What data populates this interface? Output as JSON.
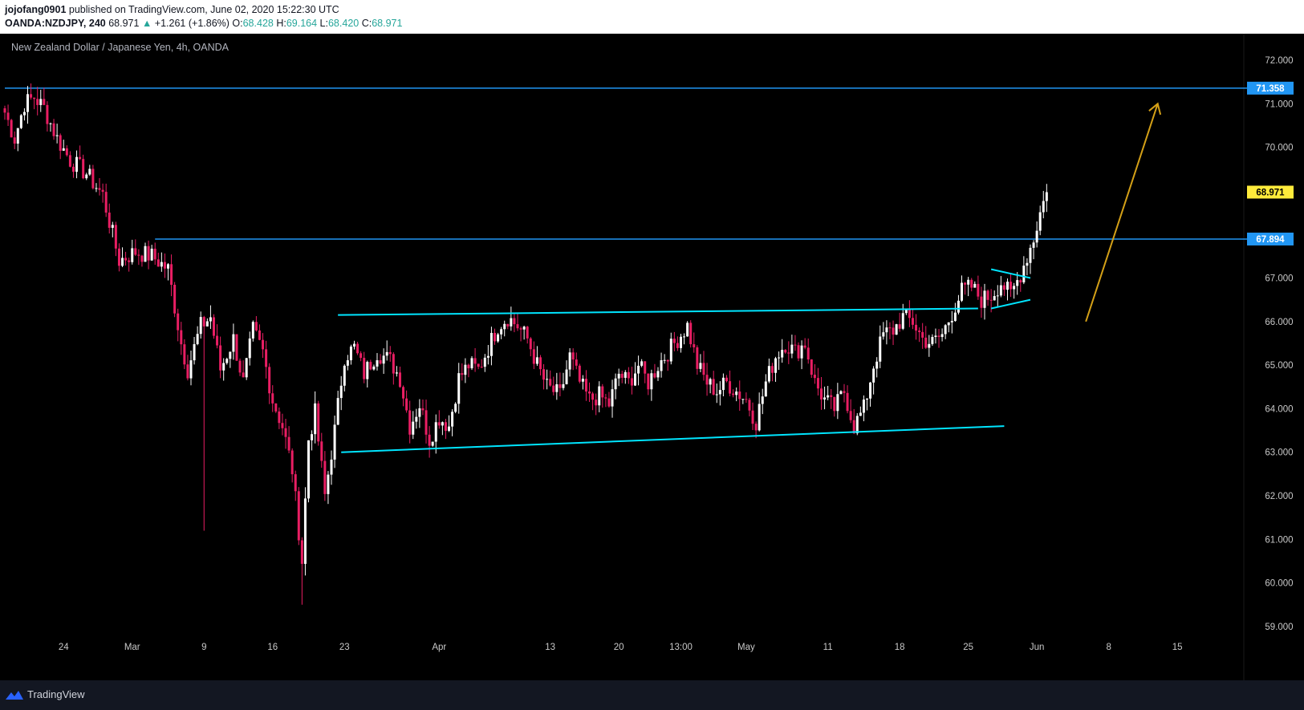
{
  "header": {
    "author": "jojofang0901",
    "published_text": "published on TradingView.com, June 02, 2020 15:22:30 UTC",
    "symbol": "OANDA:NZDJPY, 240",
    "last": "68.971",
    "change": "+1.261 (+1.86%)",
    "o_label": "O:",
    "o_val": "68.428",
    "h_label": "H:",
    "h_val": "69.164",
    "l_label": "L:",
    "l_val": "68.420",
    "c_label": "C:",
    "c_val": "68.971"
  },
  "footer": {
    "brand": "TradingView"
  },
  "colors": {
    "bull": "#ffffff",
    "bear": "#e91e63",
    "hline": "#2196f3",
    "channel": "#00e5ff",
    "arrow": "#d4a017",
    "last_badge": "#ffeb3b",
    "axis_text": "#c8c8c8"
  },
  "chart_data": {
    "type": "candlestick",
    "title": "New Zealand Dollar / Japanese Yen, 4h, OANDA",
    "ylim": [
      58.3,
      72.7
    ],
    "y_ticks": [
      "72.000",
      "71.000",
      "70.000",
      "67.000",
      "66.000",
      "65.000",
      "64.000",
      "63.000",
      "62.000",
      "61.000",
      "60.000",
      "59.000"
    ],
    "x_ticks": [
      "24",
      "Mar",
      "9",
      "16",
      "23",
      "Apr",
      "13",
      "20",
      "13:00",
      "May",
      "11",
      "18",
      "25",
      "Jun",
      "8",
      "15"
    ],
    "price_badges": [
      {
        "value": "71.358",
        "role": "level"
      },
      {
        "value": "68.971",
        "role": "last"
      },
      {
        "value": "67.894",
        "role": "level"
      }
    ],
    "horizontal_levels": [
      71.358,
      67.894
    ],
    "keypoints": [
      {
        "t": 0,
        "v": 70.8
      },
      {
        "t": 3,
        "v": 70.2
      },
      {
        "t": 6,
        "v": 71.0
      },
      {
        "t": 9,
        "v": 71.15
      },
      {
        "t": 12,
        "v": 70.9
      },
      {
        "t": 16,
        "v": 70.2
      },
      {
        "t": 20,
        "v": 69.7
      },
      {
        "t": 25,
        "v": 69.4
      },
      {
        "t": 30,
        "v": 68.9
      },
      {
        "t": 35,
        "v": 67.4
      },
      {
        "t": 40,
        "v": 67.6
      },
      {
        "t": 45,
        "v": 67.5
      },
      {
        "t": 50,
        "v": 67.2
      },
      {
        "t": 54,
        "v": 65.5
      },
      {
        "t": 56,
        "v": 64.9
      },
      {
        "t": 60,
        "v": 65.9
      },
      {
        "t": 63,
        "v": 66.1
      },
      {
        "t": 66,
        "v": 64.9
      },
      {
        "t": 70,
        "v": 65.6
      },
      {
        "t": 73,
        "v": 64.6
      },
      {
        "t": 76,
        "v": 65.8
      },
      {
        "t": 79,
        "v": 65.3
      },
      {
        "t": 82,
        "v": 64.2
      },
      {
        "t": 85,
        "v": 63.6
      },
      {
        "t": 88,
        "v": 62.6
      },
      {
        "t": 91,
        "v": 60.5
      },
      {
        "t": 93,
        "v": 63.3
      },
      {
        "t": 95,
        "v": 63.9
      },
      {
        "t": 98,
        "v": 62.0
      },
      {
        "t": 101,
        "v": 63.5
      },
      {
        "t": 104,
        "v": 65.2
      },
      {
        "t": 107,
        "v": 65.4
      },
      {
        "t": 110,
        "v": 64.8
      },
      {
        "t": 114,
        "v": 65.3
      },
      {
        "t": 118,
        "v": 65.1
      },
      {
        "t": 121,
        "v": 64.7
      },
      {
        "t": 124,
        "v": 63.6
      },
      {
        "t": 127,
        "v": 64.1
      },
      {
        "t": 130,
        "v": 63.3
      },
      {
        "t": 133,
        "v": 63.8
      },
      {
        "t": 136,
        "v": 63.6
      },
      {
        "t": 139,
        "v": 64.7
      },
      {
        "t": 142,
        "v": 65.0
      },
      {
        "t": 145,
        "v": 64.9
      },
      {
        "t": 148,
        "v": 65.4
      },
      {
        "t": 151,
        "v": 65.9
      },
      {
        "t": 154,
        "v": 66.1
      },
      {
        "t": 157,
        "v": 65.9
      },
      {
        "t": 160,
        "v": 65.6
      },
      {
        "t": 163,
        "v": 65.0
      },
      {
        "t": 166,
        "v": 64.5
      },
      {
        "t": 170,
        "v": 64.3
      },
      {
        "t": 173,
        "v": 65.2
      },
      {
        "t": 176,
        "v": 64.6
      },
      {
        "t": 179,
        "v": 64.2
      },
      {
        "t": 182,
        "v": 64.3
      },
      {
        "t": 185,
        "v": 64.1
      },
      {
        "t": 188,
        "v": 64.8
      },
      {
        "t": 191,
        "v": 64.6
      },
      {
        "t": 194,
        "v": 65.0
      },
      {
        "t": 197,
        "v": 64.6
      },
      {
        "t": 200,
        "v": 65.0
      },
      {
        "t": 203,
        "v": 65.3
      },
      {
        "t": 206,
        "v": 65.6
      },
      {
        "t": 209,
        "v": 65.9
      },
      {
        "t": 212,
        "v": 65.0
      },
      {
        "t": 215,
        "v": 64.6
      },
      {
        "t": 218,
        "v": 64.4
      },
      {
        "t": 221,
        "v": 64.6
      },
      {
        "t": 224,
        "v": 64.4
      },
      {
        "t": 227,
        "v": 64.2
      },
      {
        "t": 230,
        "v": 63.7
      },
      {
        "t": 233,
        "v": 64.6
      },
      {
        "t": 236,
        "v": 65.2
      },
      {
        "t": 239,
        "v": 65.5
      },
      {
        "t": 242,
        "v": 65.3
      },
      {
        "t": 245,
        "v": 65.5
      },
      {
        "t": 248,
        "v": 64.6
      },
      {
        "t": 251,
        "v": 64.2
      },
      {
        "t": 254,
        "v": 64.0
      },
      {
        "t": 257,
        "v": 64.4
      },
      {
        "t": 260,
        "v": 63.6
      },
      {
        "t": 263,
        "v": 64.0
      },
      {
        "t": 266,
        "v": 65.0
      },
      {
        "t": 269,
        "v": 65.7
      },
      {
        "t": 272,
        "v": 65.8
      },
      {
        "t": 275,
        "v": 66.1
      },
      {
        "t": 278,
        "v": 66.0
      },
      {
        "t": 281,
        "v": 65.6
      },
      {
        "t": 284,
        "v": 65.5
      },
      {
        "t": 287,
        "v": 65.7
      },
      {
        "t": 290,
        "v": 66.2
      },
      {
        "t": 293,
        "v": 66.7
      },
      {
        "t": 296,
        "v": 66.8
      },
      {
        "t": 299,
        "v": 66.5
      },
      {
        "t": 302,
        "v": 66.6
      },
      {
        "t": 305,
        "v": 66.9
      },
      {
        "t": 308,
        "v": 66.6
      },
      {
        "t": 311,
        "v": 67.1
      },
      {
        "t": 313,
        "v": 67.5
      },
      {
        "t": 315,
        "v": 67.9
      },
      {
        "t": 317,
        "v": 68.5
      },
      {
        "t": 319,
        "v": 68.97
      }
    ],
    "drawings": [
      {
        "type": "trendline",
        "color": "channel",
        "from": {
          "t": 102,
          "v": 66.15
        },
        "to": {
          "t": 298,
          "v": 66.3
        }
      },
      {
        "type": "trendline",
        "color": "channel",
        "from": {
          "t": 103,
          "v": 63.0
        },
        "to": {
          "t": 306,
          "v": 63.6
        }
      },
      {
        "type": "trendline",
        "color": "channel",
        "from": {
          "t": 302,
          "v": 67.2
        },
        "to": {
          "t": 314,
          "v": 67.0
        }
      },
      {
        "type": "trendline",
        "color": "channel",
        "from": {
          "t": 302,
          "v": 66.3
        },
        "to": {
          "t": 314,
          "v": 66.5
        }
      },
      {
        "type": "arrow",
        "color": "arrow",
        "from": {
          "t": 331,
          "v": 66.0
        },
        "to": {
          "t": 353,
          "v": 71.0
        }
      }
    ]
  }
}
